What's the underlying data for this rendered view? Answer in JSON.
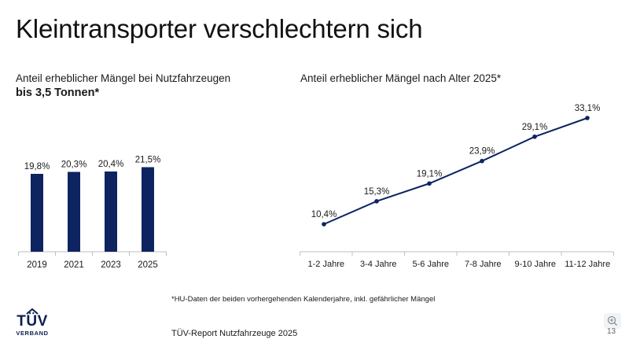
{
  "slide": {
    "title": "Kleintransporter verschlechtern sich",
    "footnote": "*HU-Daten der beiden vorhergehenden Kalenderjahre, inkl. gefährlicher Mängel",
    "source": "TÜV-Report Nutzfahrzeuge 2025",
    "page_number": "13",
    "logo": {
      "word": "TÜV",
      "sub": "VERBAND"
    },
    "zoom_icon": "zoom-in-icon"
  },
  "colors": {
    "bar": "#0d2461",
    "line": "#0d2461",
    "axis": "#bfbfbf"
  },
  "chart_data": [
    {
      "type": "bar",
      "title_line1": "Anteil erheblicher Mängel bei Nutzfahrzeugen",
      "title_line2": "bis 3,5 Tonnen*",
      "categories": [
        "2019",
        "2021",
        "2023",
        "2025"
      ],
      "values": [
        19.8,
        20.3,
        20.4,
        21.5
      ],
      "labels": [
        "19,8%",
        "20,3%",
        "20,4%",
        "21,5%"
      ],
      "ylim": [
        0,
        25
      ]
    },
    {
      "type": "line",
      "title": "Anteil erheblicher Mängel nach Alter 2025*",
      "categories": [
        "1-2 Jahre",
        "3-4 Jahre",
        "5-6 Jahre",
        "7-8 Jahre",
        "9-10 Jahre",
        "11-12 Jahre"
      ],
      "values": [
        10.4,
        15.3,
        19.1,
        23.9,
        29.1,
        33.1
      ],
      "labels": [
        "10,4%",
        "15,3%",
        "19,1%",
        "23,9%",
        "29,1%",
        "33,1%"
      ],
      "ylim": [
        0,
        36
      ]
    }
  ]
}
